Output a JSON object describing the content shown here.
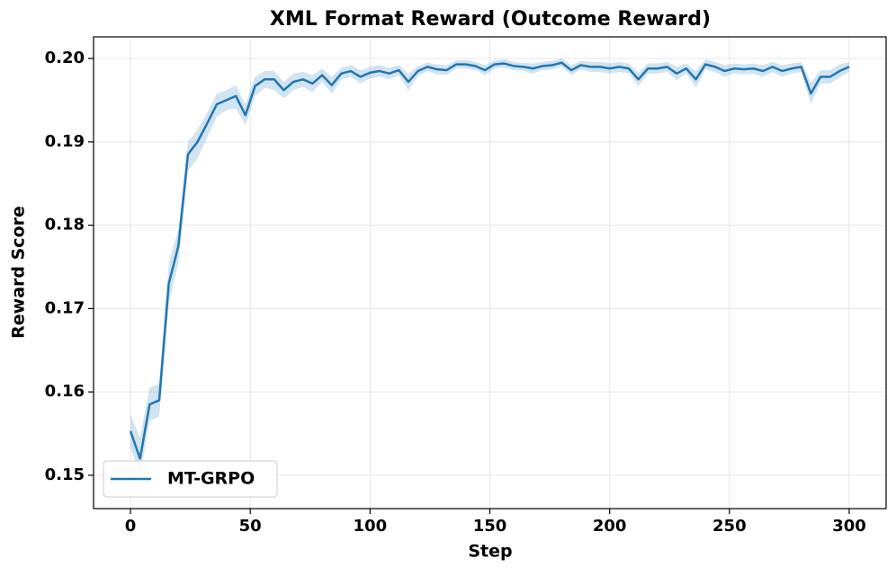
{
  "chart_data": {
    "type": "line",
    "title": "XML Format Reward (Outcome Reward)",
    "x_label": "Step",
    "y_label": "Reward Score",
    "x": [
      0,
      4,
      8,
      12,
      16,
      20,
      24,
      28,
      32,
      36,
      40,
      44,
      48,
      52,
      56,
      60,
      64,
      68,
      72,
      76,
      80,
      84,
      88,
      92,
      96,
      100,
      104,
      108,
      112,
      116,
      120,
      124,
      128,
      132,
      136,
      140,
      144,
      148,
      152,
      156,
      160,
      164,
      168,
      172,
      176,
      180,
      184,
      188,
      192,
      196,
      200,
      204,
      208,
      212,
      216,
      220,
      224,
      228,
      232,
      236,
      240,
      244,
      248,
      252,
      256,
      260,
      264,
      268,
      272,
      276,
      280,
      284,
      288,
      292,
      296,
      300
    ],
    "series": [
      {
        "name": "MT-GRPO",
        "color": "#1f77b4",
        "values": [
          0.1553,
          0.152,
          0.1585,
          0.159,
          0.173,
          0.1775,
          0.1885,
          0.19,
          0.1922,
          0.1945,
          0.195,
          0.1955,
          0.1932,
          0.1967,
          0.1975,
          0.1975,
          0.1962,
          0.1972,
          0.1975,
          0.197,
          0.198,
          0.1968,
          0.1982,
          0.1985,
          0.1978,
          0.1983,
          0.1985,
          0.1982,
          0.1986,
          0.1972,
          0.1985,
          0.199,
          0.1987,
          0.1986,
          0.1993,
          0.1993,
          0.1991,
          0.1986,
          0.1993,
          0.1994,
          0.1991,
          0.199,
          0.1988,
          0.1991,
          0.1992,
          0.1995,
          0.1986,
          0.1992,
          0.199,
          0.199,
          0.1988,
          0.199,
          0.1988,
          0.1975,
          0.1988,
          0.1988,
          0.199,
          0.1982,
          0.1988,
          0.1975,
          0.1993,
          0.199,
          0.1985,
          0.1988,
          0.1987,
          0.1988,
          0.1985,
          0.199,
          0.1985,
          0.1988,
          0.199,
          0.1958,
          0.1978,
          0.1978,
          0.1985,
          0.199
        ],
        "lower": [
          0.1533,
          0.15,
          0.1565,
          0.157,
          0.1705,
          0.1755,
          0.1865,
          0.188,
          0.1905,
          0.193,
          0.1938,
          0.194,
          0.192,
          0.1955,
          0.1965,
          0.1962,
          0.1952,
          0.1962,
          0.1966,
          0.196,
          0.1972,
          0.1958,
          0.1975,
          0.1978,
          0.197,
          0.1976,
          0.1978,
          0.1975,
          0.198,
          0.1962,
          0.1979,
          0.1985,
          0.1981,
          0.198,
          0.1988,
          0.1988,
          0.1986,
          0.198,
          0.1988,
          0.1989,
          0.1986,
          0.1985,
          0.1982,
          0.1986,
          0.1987,
          0.199,
          0.198,
          0.1987,
          0.1984,
          0.1984,
          0.1982,
          0.1984,
          0.1982,
          0.1967,
          0.1982,
          0.1982,
          0.1984,
          0.1974,
          0.1982,
          0.1965,
          0.1987,
          0.1984,
          0.1978,
          0.1982,
          0.1981,
          0.1982,
          0.1978,
          0.1984,
          0.1978,
          0.1982,
          0.1984,
          0.1945,
          0.197,
          0.197,
          0.1977,
          0.1984
        ],
        "upper": [
          0.1573,
          0.1545,
          0.1605,
          0.161,
          0.1755,
          0.1795,
          0.19,
          0.1915,
          0.1935,
          0.1958,
          0.1962,
          0.1968,
          0.1945,
          0.1978,
          0.1985,
          0.1985,
          0.1972,
          0.1982,
          0.1984,
          0.198,
          0.1988,
          0.1978,
          0.1989,
          0.1992,
          0.1986,
          0.199,
          0.1992,
          0.1989,
          0.1992,
          0.1982,
          0.1991,
          0.1995,
          0.1993,
          0.1992,
          0.1998,
          0.1998,
          0.1996,
          0.1992,
          0.1998,
          0.1999,
          0.1996,
          0.1995,
          0.1994,
          0.1996,
          0.1997,
          0.2,
          0.1992,
          0.1997,
          0.1996,
          0.1996,
          0.1994,
          0.1996,
          0.1994,
          0.1983,
          0.1994,
          0.1994,
          0.1996,
          0.199,
          0.1994,
          0.1985,
          0.1999,
          0.1996,
          0.1992,
          0.1994,
          0.1993,
          0.1994,
          0.1992,
          0.1996,
          0.1992,
          0.1994,
          0.1996,
          0.1971,
          0.1986,
          0.1986,
          0.1993,
          0.1996
        ]
      }
    ],
    "xlim": [
      -15.4,
      315.4
    ],
    "ylim": [
      0.146,
      0.2026
    ],
    "xticks": [
      0,
      50,
      100,
      150,
      200,
      250,
      300
    ],
    "yticks": [
      0.15,
      0.16,
      0.17,
      0.18,
      0.19,
      {
        "value": 0.2,
        "label": "0.20"
      }
    ],
    "grid": true,
    "legend": "lower left"
  }
}
